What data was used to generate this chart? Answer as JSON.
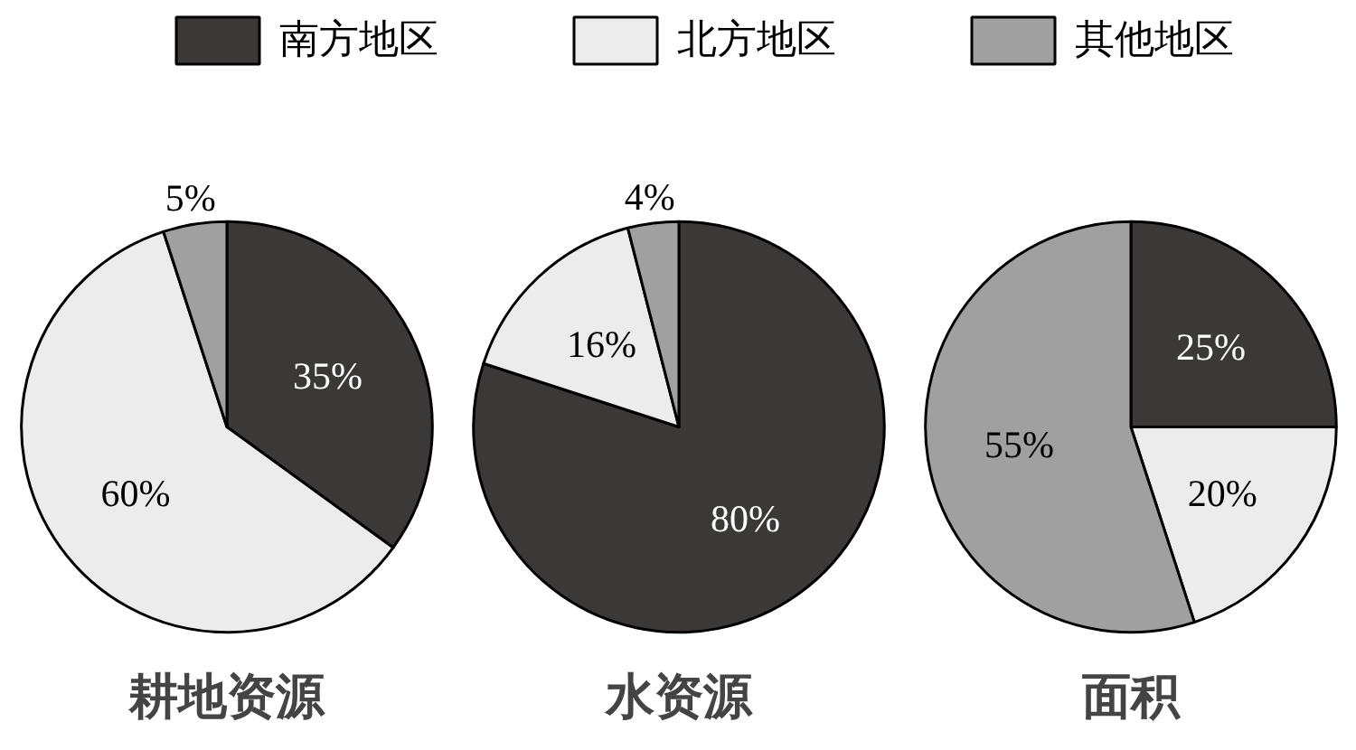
{
  "chart_data": [
    {
      "type": "pie",
      "title": "耕地资源",
      "legend": "top",
      "categories": [
        "南方地区",
        "北方地区",
        "其他地区"
      ],
      "values": [
        35,
        60,
        5
      ],
      "value_labels": [
        "35%",
        "60%",
        "5%"
      ],
      "colors": [
        "#3d3838",
        "#ececec",
        "#a0a0a0"
      ]
    },
    {
      "type": "pie",
      "title": "水资源",
      "values": [
        80,
        16,
        4
      ],
      "value_labels": [
        "80%",
        "16%",
        "4%"
      ],
      "colors": [
        "#3d3838",
        "#ececec",
        "#a0a0a0"
      ]
    },
    {
      "type": "pie",
      "title": "面积",
      "values": [
        25,
        20,
        55
      ],
      "value_labels": [
        "25%",
        "20%",
        "55%"
      ],
      "colors": [
        "#3d3838",
        "#ececec",
        "#a0a0a0"
      ]
    }
  ]
}
